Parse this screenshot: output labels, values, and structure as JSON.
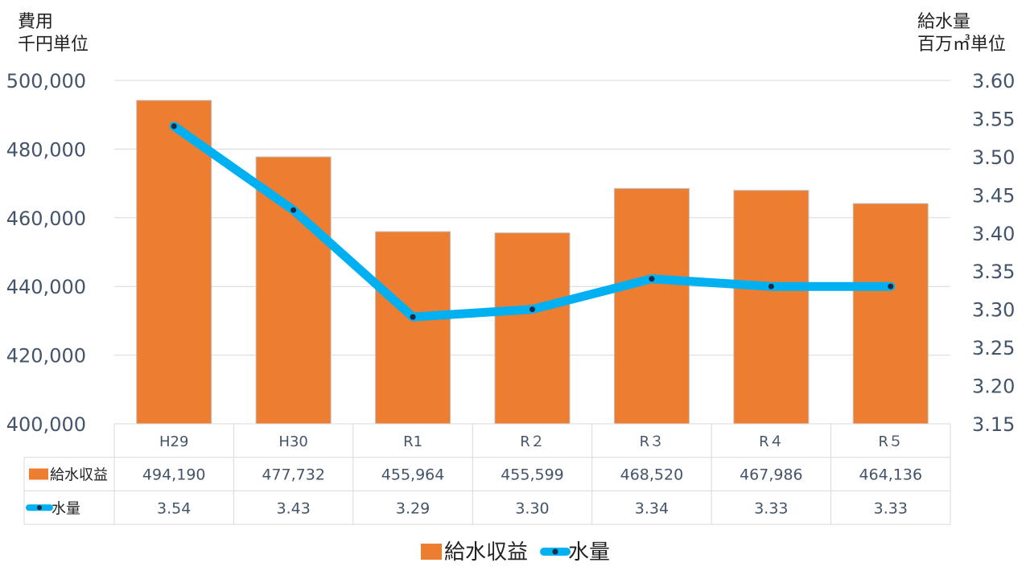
{
  "chart_data": {
    "type": "bar",
    "categories": [
      "H29",
      "H30",
      "R1",
      "R２",
      "R３",
      "R４",
      "R５"
    ],
    "series": [
      {
        "name": "給水収益",
        "kind": "bar",
        "axis": "left",
        "color": "#ed7d31",
        "values": [
          494190,
          477732,
          455964,
          455599,
          468520,
          467986,
          464136
        ],
        "labels": [
          "494,190",
          "477,732",
          "455,964",
          "455,599",
          "468,520",
          "467,986",
          "464,136"
        ]
      },
      {
        "name": "水量",
        "kind": "line",
        "axis": "right",
        "color": "#00b0f0",
        "marker_color": "#1f2a44",
        "values": [
          3.54,
          3.43,
          3.29,
          3.3,
          3.34,
          3.33,
          3.33
        ],
        "labels": [
          "3.54",
          "3.43",
          "3.29",
          "3.30",
          "3.34",
          "3.33",
          "3.33"
        ]
      }
    ],
    "y_left": {
      "title_line1": "費用",
      "title_line2": "千円単位",
      "ylim": [
        400000,
        500000
      ],
      "ticks": [
        400000,
        420000,
        440000,
        460000,
        480000,
        500000
      ],
      "tick_labels": [
        "400,000",
        "420,000",
        "440,000",
        "460,000",
        "480,000",
        "500,000"
      ]
    },
    "y_right": {
      "title_line1": "給水量",
      "title_line2": "百万㎥単位",
      "ylim": [
        3.15,
        3.6
      ],
      "ticks": [
        3.15,
        3.2,
        3.25,
        3.3,
        3.35,
        3.4,
        3.45,
        3.5,
        3.55,
        3.6
      ],
      "tick_labels": [
        "3.15",
        "3.20",
        "3.25",
        "3.30",
        "3.35",
        "3.40",
        "3.45",
        "3.50",
        "3.55",
        "3.60"
      ]
    },
    "grid": true,
    "data_table": true,
    "legend": {
      "position": "bottom"
    }
  }
}
